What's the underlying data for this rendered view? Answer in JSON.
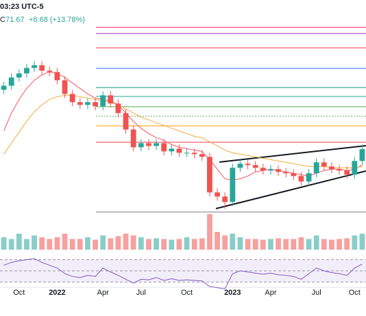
{
  "header": {
    "time": "03:23 UTC-5",
    "close_label": "C",
    "change": "+8.68 (+13.78%)"
  },
  "chart_data": {
    "type": "candlestick",
    "close": 71.67,
    "categories": [
      null,
      null,
      "Oct",
      null,
      null,
      null,
      null,
      "2022",
      null,
      null,
      null,
      null,
      null,
      "Apr",
      null,
      null,
      null,
      null,
      "Jul",
      null,
      null,
      null,
      null,
      null,
      "Oct",
      null,
      null,
      null,
      null,
      null,
      "2023",
      null,
      null,
      null,
      null,
      "Apr",
      null,
      null,
      null,
      null,
      null,
      "Jul",
      null,
      null,
      null,
      null,
      "Oct",
      null
    ],
    "open": [
      115,
      118,
      124,
      127,
      131,
      133,
      129,
      128,
      122,
      112,
      106,
      104,
      106,
      103,
      111,
      105,
      98,
      86,
      73,
      76,
      74,
      76,
      70,
      72,
      69,
      69,
      68,
      66,
      40,
      37,
      33,
      58,
      61,
      60,
      58,
      56,
      57,
      55,
      54,
      52,
      48,
      54,
      62,
      59,
      57,
      56,
      53,
      63
    ],
    "high": [
      121,
      127,
      130,
      134,
      136,
      136,
      132,
      131,
      125,
      115,
      109,
      109,
      109,
      114,
      114,
      108,
      101,
      89,
      79,
      79,
      79,
      79,
      75,
      75,
      72,
      72,
      71,
      69,
      43,
      40,
      61,
      64,
      64,
      63,
      61,
      60,
      60,
      58,
      57,
      55,
      57,
      65,
      65,
      62,
      60,
      59,
      66,
      75
    ],
    "low": [
      112,
      115,
      121,
      124,
      128,
      126,
      125,
      119,
      109,
      103,
      101,
      101,
      100,
      100,
      102,
      95,
      83,
      70,
      70,
      71,
      71,
      67,
      67,
      66,
      66,
      65,
      63,
      37,
      34,
      28,
      30,
      55,
      57,
      55,
      53,
      53,
      52,
      51,
      49,
      45,
      45,
      51,
      56,
      54,
      53,
      50,
      50,
      60
    ],
    "close_values": [
      118,
      124,
      127,
      131,
      133,
      129,
      128,
      122,
      112,
      106,
      104,
      106,
      103,
      111,
      105,
      98,
      86,
      73,
      76,
      74,
      76,
      70,
      72,
      69,
      69,
      68,
      66,
      40,
      37,
      33,
      58,
      61,
      60,
      58,
      56,
      57,
      55,
      54,
      52,
      48,
      54,
      62,
      59,
      57,
      56,
      53,
      63,
      71.67
    ],
    "up_color": "#26a69a",
    "down_color": "#ef5350",
    "ylim": [
      25.67,
      180.67
    ],
    "levels": [
      {
        "value": 160.7,
        "color": "#e91e63"
      },
      {
        "value": 156.2,
        "color": "#9c27b0"
      },
      {
        "value": 145.7,
        "color": "#f23645"
      },
      {
        "value": 130.7,
        "color": "#2962ff"
      },
      {
        "value": 116.7,
        "color": "#089981"
      },
      {
        "value": 110.2,
        "color": "#22ab94"
      },
      {
        "value": 102.7,
        "color": "#4caf50"
      },
      {
        "value": 95.7,
        "color": "#4caf50"
      },
      {
        "value": 88.7,
        "color": "#ff9800"
      },
      {
        "value": 76.7,
        "color": "#f23645"
      },
      {
        "value": 25.7,
        "color": "#787b86"
      }
    ],
    "series": [
      {
        "color": "#f7525f",
        "values": [
          85,
          98,
          108,
          116,
          122,
          126,
          128,
          127,
          124,
          120,
          116,
          112,
          109,
          108,
          107,
          104,
          98,
          92,
          87,
          83,
          80,
          78,
          75,
          73,
          72,
          71,
          70,
          64,
          57,
          50,
          49,
          50,
          52,
          55,
          56,
          57,
          56,
          55,
          54,
          53,
          52,
          54,
          56,
          57,
          57,
          56,
          57,
          60
        ]
      },
      {
        "color": "#f5a93c",
        "values": [
          68,
          76,
          84,
          92,
          99,
          104,
          108,
          110,
          111,
          111,
          110,
          109,
          108,
          107,
          106,
          104,
          101,
          98,
          95,
          93,
          91,
          89,
          87,
          85,
          83,
          81,
          80,
          77,
          74,
          71,
          69,
          68,
          67,
          66,
          65,
          64,
          63,
          62,
          61,
          60,
          59,
          59,
          59,
          58,
          58,
          58,
          58,
          59
        ]
      }
    ],
    "volume": [
      35,
      30,
      45,
      30,
      40,
      35,
      30,
      35,
      45,
      30,
      30,
      35,
      28,
      40,
      32,
      38,
      45,
      40,
      35,
      30,
      32,
      30,
      28,
      30,
      35,
      30,
      32,
      100,
      50,
      40,
      45,
      35,
      30,
      30,
      28,
      30,
      32,
      30,
      30,
      35,
      30,
      40,
      30,
      28,
      30,
      32,
      40,
      45
    ],
    "volume_ylim": [
      0,
      100
    ],
    "rsi": {
      "color": "#7e57c2",
      "values": [
        60,
        65,
        68,
        70,
        72,
        65,
        60,
        55,
        45,
        40,
        38,
        42,
        40,
        55,
        48,
        42,
        35,
        28,
        35,
        34,
        38,
        33,
        36,
        33,
        34,
        33,
        32,
        22,
        20,
        18,
        45,
        50,
        48,
        46,
        44,
        46,
        43,
        42,
        40,
        35,
        45,
        55,
        50,
        47,
        45,
        42,
        55,
        62
      ],
      "ylim": [
        0,
        100
      ],
      "bands": [
        30,
        50,
        70
      ],
      "band_color": "#7e57c2"
    }
  }
}
